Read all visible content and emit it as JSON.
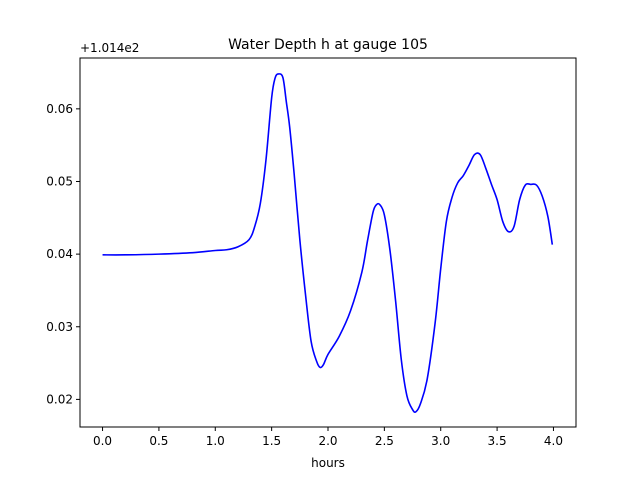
{
  "chart_data": {
    "type": "line",
    "title": "Water Depth h at gauge 105",
    "xlabel": "hours",
    "ylabel": "",
    "offset_label": "+1.014e2",
    "xlim": [
      -0.2,
      4.2
    ],
    "ylim": [
      0.0162,
      0.067
    ],
    "x_ticks": [
      0.0,
      0.5,
      1.0,
      1.5,
      2.0,
      2.5,
      3.0,
      3.5,
      4.0
    ],
    "x_tick_labels": [
      "0.0",
      "0.5",
      "1.0",
      "1.5",
      "2.0",
      "2.5",
      "3.0",
      "3.5",
      "4.0"
    ],
    "y_ticks": [
      0.02,
      0.03,
      0.04,
      0.05,
      0.06
    ],
    "y_tick_labels": [
      "0.02",
      "0.03",
      "0.04",
      "0.05",
      "0.06"
    ],
    "grid": false,
    "series": [
      {
        "color": "#0000ff",
        "x": [
          0.0,
          0.2,
          0.5,
          0.8,
          1.0,
          1.1,
          1.2,
          1.3,
          1.35,
          1.4,
          1.45,
          1.5,
          1.53,
          1.56,
          1.6,
          1.63,
          1.66,
          1.7,
          1.75,
          1.8,
          1.85,
          1.9,
          1.93,
          1.96,
          2.0,
          2.1,
          2.2,
          2.3,
          2.35,
          2.4,
          2.43,
          2.46,
          2.5,
          2.55,
          2.6,
          2.65,
          2.7,
          2.75,
          2.78,
          2.82,
          2.88,
          2.95,
          3.0,
          3.05,
          3.1,
          3.15,
          3.2,
          3.25,
          3.3,
          3.35,
          3.4,
          3.45,
          3.5,
          3.55,
          3.6,
          3.65,
          3.7,
          3.75,
          3.8,
          3.85,
          3.9,
          3.95,
          3.99
        ],
        "values": [
          0.0399,
          0.0399,
          0.04,
          0.0402,
          0.0405,
          0.0406,
          0.041,
          0.042,
          0.0438,
          0.047,
          0.053,
          0.0615,
          0.0642,
          0.0648,
          0.0643,
          0.061,
          0.0575,
          0.051,
          0.042,
          0.0345,
          0.028,
          0.0252,
          0.0244,
          0.0248,
          0.0262,
          0.0287,
          0.0322,
          0.0375,
          0.0418,
          0.0458,
          0.0468,
          0.0468,
          0.0454,
          0.0405,
          0.0335,
          0.0255,
          0.0205,
          0.0186,
          0.0183,
          0.0194,
          0.0228,
          0.0305,
          0.038,
          0.0445,
          0.0478,
          0.0498,
          0.0508,
          0.0522,
          0.0537,
          0.0537,
          0.0518,
          0.0496,
          0.0475,
          0.0445,
          0.0431,
          0.0438,
          0.0475,
          0.0495,
          0.0496,
          0.0495,
          0.048,
          0.0452,
          0.0413
        ]
      }
    ]
  }
}
